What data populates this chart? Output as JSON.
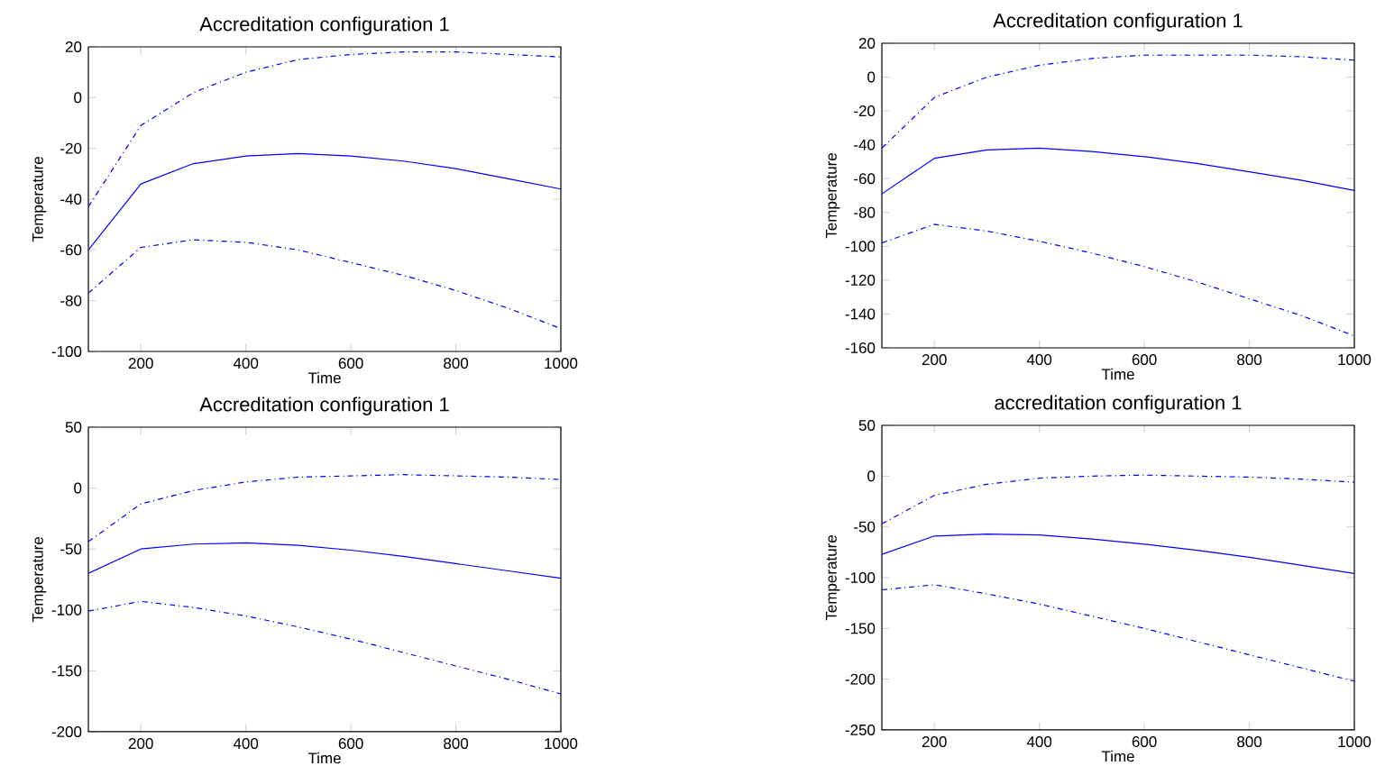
{
  "chart_data": [
    {
      "type": "line",
      "title": "Accreditation configuration 1",
      "xlabel": "Time",
      "ylabel": "Temperature",
      "x": [
        100,
        200,
        300,
        400,
        500,
        600,
        700,
        800,
        900,
        1000
      ],
      "xlim": [
        100,
        1000
      ],
      "ylim": [
        -100,
        20
      ],
      "xticks": [
        200,
        400,
        600,
        800,
        1000
      ],
      "yticks": [
        -100,
        -80,
        -60,
        -40,
        -20,
        0,
        20
      ],
      "series": [
        {
          "color": "#0000ff",
          "line_style": "dashed",
          "values": [
            -43,
            -11,
            2,
            10,
            15,
            17,
            18,
            18,
            17,
            16
          ]
        },
        {
          "color": "#0000ff",
          "line_style": "solid",
          "values": [
            -60,
            -34,
            -26,
            -23,
            -22,
            -23,
            -25,
            -28,
            -32,
            -36
          ]
        },
        {
          "color": "#0000ff",
          "line_style": "dashed",
          "values": [
            -77,
            -59,
            -56,
            -57,
            -60,
            -65,
            -70,
            -76,
            -83,
            -91
          ]
        }
      ]
    },
    {
      "type": "line",
      "title": "Accreditation configuration 1",
      "xlabel": "Time",
      "ylabel": "Temperature",
      "x": [
        100,
        200,
        300,
        400,
        500,
        600,
        700,
        800,
        900,
        1000
      ],
      "xlim": [
        100,
        1000
      ],
      "ylim": [
        -160,
        20
      ],
      "xticks": [
        200,
        400,
        600,
        800,
        1000
      ],
      "yticks": [
        -160,
        -140,
        -120,
        -100,
        -80,
        -60,
        -40,
        -20,
        0,
        20
      ],
      "series": [
        {
          "color": "#0000ff",
          "line_style": "dashed",
          "values": [
            -42,
            -12,
            0,
            7,
            11,
            13,
            13,
            13,
            12,
            10
          ]
        },
        {
          "color": "#0000ff",
          "line_style": "solid",
          "values": [
            -69,
            -48,
            -43,
            -42,
            -44,
            -47,
            -51,
            -56,
            -61,
            -67
          ]
        },
        {
          "color": "#0000ff",
          "line_style": "dashed",
          "values": [
            -98,
            -87,
            -91,
            -97,
            -104,
            -112,
            -121,
            -131,
            -141,
            -153
          ]
        }
      ]
    },
    {
      "type": "line",
      "title": "Accreditation configuration 1",
      "xlabel": "Time",
      "ylabel": "Temperature",
      "x": [
        100,
        200,
        300,
        400,
        500,
        600,
        700,
        800,
        900,
        1000
      ],
      "xlim": [
        100,
        1000
      ],
      "ylim": [
        -200,
        50
      ],
      "xticks": [
        200,
        400,
        600,
        800,
        1000
      ],
      "yticks": [
        -200,
        -150,
        -100,
        -50,
        0,
        50
      ],
      "series": [
        {
          "color": "#0000ff",
          "line_style": "dashed",
          "values": [
            -44,
            -13,
            -2,
            5,
            9,
            10,
            11,
            10,
            9,
            7
          ]
        },
        {
          "color": "#0000ff",
          "line_style": "solid",
          "values": [
            -70,
            -50,
            -46,
            -45,
            -47,
            -51,
            -56,
            -62,
            -68,
            -74
          ]
        },
        {
          "color": "#0000ff",
          "line_style": "dashed",
          "values": [
            -101,
            -93,
            -98,
            -105,
            -114,
            -124,
            -135,
            -146,
            -157,
            -169
          ]
        }
      ]
    },
    {
      "type": "line",
      "title": "accreditation configuration 1",
      "xlabel": "Time",
      "ylabel": "Temperature",
      "x": [
        100,
        200,
        300,
        400,
        500,
        600,
        700,
        800,
        900,
        1000
      ],
      "xlim": [
        100,
        1000
      ],
      "ylim": [
        -250,
        50
      ],
      "xticks": [
        200,
        400,
        600,
        800,
        1000
      ],
      "yticks": [
        -250,
        -200,
        -150,
        -100,
        -50,
        0,
        50
      ],
      "series": [
        {
          "color": "#0000ff",
          "line_style": "dashed",
          "values": [
            -47,
            -19,
            -8,
            -2,
            0,
            1,
            0,
            -1,
            -3,
            -6
          ]
        },
        {
          "color": "#0000ff",
          "line_style": "solid",
          "values": [
            -77,
            -59,
            -57,
            -58,
            -62,
            -67,
            -73,
            -80,
            -88,
            -96
          ]
        },
        {
          "color": "#0000ff",
          "line_style": "dashed",
          "values": [
            -112,
            -107,
            -116,
            -126,
            -138,
            -150,
            -163,
            -176,
            -189,
            -202
          ]
        }
      ]
    }
  ]
}
